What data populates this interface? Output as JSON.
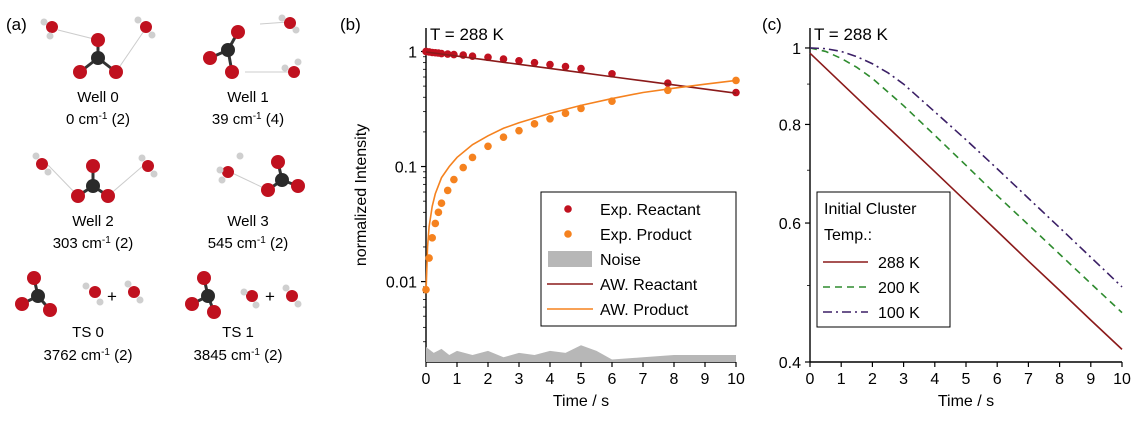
{
  "panel_a": {
    "label": "(a)",
    "structures": [
      {
        "name": "Well 0",
        "energy": "0 cm",
        "sup": "-1",
        "tail": " (2)"
      },
      {
        "name": "Well 1",
        "energy": "39 cm",
        "sup": "-1",
        "tail": " (4)"
      },
      {
        "name": "Well 2",
        "energy": "303 cm",
        "sup": "-1",
        "tail": " (2)"
      },
      {
        "name": "Well 3",
        "energy": "545 cm",
        "sup": "-1",
        "tail": " (2)"
      },
      {
        "name": "TS 0",
        "energy": "3762 cm",
        "sup": "-1",
        "tail": " (2)"
      },
      {
        "name": "TS 1",
        "energy": "3845 cm",
        "sup": "-1",
        "tail": " (2)"
      }
    ],
    "plus": "+"
  },
  "chart_data": [
    {
      "panel": "(b)",
      "type": "scatter",
      "annotation": "T = 288 K",
      "xlabel": "Time / s",
      "ylabel": "normalized Intensity",
      "xlim": [
        0,
        10
      ],
      "ylim": [
        0.002,
        1.6
      ],
      "yscale": "log",
      "xticks": [
        0,
        1,
        2,
        3,
        4,
        5,
        6,
        7,
        8,
        9,
        10
      ],
      "yticks": [
        0.01,
        0.1,
        1
      ],
      "ytick_labels": [
        "0.01",
        "0.1",
        "1"
      ],
      "legend_position": "bottom-right",
      "series": [
        {
          "name": "Exp. Reactant",
          "kind": "points",
          "color": "#c0111f",
          "x": [
            0,
            0.1,
            0.2,
            0.3,
            0.4,
            0.5,
            0.7,
            0.9,
            1.2,
            1.5,
            2,
            2.5,
            3,
            3.5,
            4,
            4.5,
            5,
            6,
            7.8,
            10
          ],
          "y": [
            1.0,
            0.99,
            0.98,
            0.975,
            0.97,
            0.96,
            0.95,
            0.94,
            0.93,
            0.91,
            0.89,
            0.86,
            0.83,
            0.8,
            0.77,
            0.74,
            0.71,
            0.64,
            0.53,
            0.44
          ]
        },
        {
          "name": "Exp. Product",
          "kind": "points",
          "color": "#f5821f",
          "x": [
            0,
            0.1,
            0.2,
            0.3,
            0.4,
            0.5,
            0.7,
            0.9,
            1.2,
            1.5,
            2,
            2.5,
            3,
            3.5,
            4,
            4.5,
            5,
            6,
            7.8,
            10
          ],
          "y": [
            0.0085,
            0.016,
            0.024,
            0.032,
            0.04,
            0.048,
            0.062,
            0.077,
            0.098,
            0.12,
            0.15,
            0.18,
            0.205,
            0.235,
            0.26,
            0.29,
            0.32,
            0.37,
            0.46,
            0.56
          ]
        },
        {
          "name": "Noise",
          "kind": "band",
          "color": "#b7b7b7",
          "x": [
            0,
            0.25,
            0.5,
            0.75,
            1,
            1.5,
            2,
            2.5,
            3,
            3.5,
            4,
            4.5,
            5,
            5.5,
            6,
            7,
            8,
            9,
            10
          ],
          "y": [
            0.0027,
            0.0024,
            0.0026,
            0.0023,
            0.0025,
            0.0023,
            0.0025,
            0.0022,
            0.0024,
            0.0023,
            0.0025,
            0.0024,
            0.0028,
            0.0025,
            0.0021,
            0.0022,
            0.0023,
            0.0023,
            0.0023
          ]
        },
        {
          "name": "AW. Reactant",
          "kind": "line",
          "color": "#8b1a1a",
          "x": [
            0,
            1,
            2,
            3,
            4,
            5,
            6,
            7,
            8,
            9,
            10
          ],
          "y": [
            0.99,
            0.912,
            0.84,
            0.773,
            0.712,
            0.656,
            0.603,
            0.556,
            0.512,
            0.471,
            0.434
          ]
        },
        {
          "name": "AW. Product",
          "kind": "line",
          "color": "#f5821f",
          "x": [
            0,
            0.05,
            0.1,
            0.2,
            0.3,
            0.5,
            0.75,
            1,
            1.5,
            2,
            2.5,
            3,
            4,
            5,
            6,
            7,
            8,
            9,
            10
          ],
          "y": [
            0.008,
            0.02,
            0.03,
            0.045,
            0.058,
            0.08,
            0.1,
            0.12,
            0.155,
            0.185,
            0.215,
            0.24,
            0.29,
            0.34,
            0.39,
            0.44,
            0.48,
            0.52,
            0.56
          ]
        }
      ]
    },
    {
      "panel": "(c)",
      "type": "line",
      "annotation": "T = 288 K",
      "xlabel": "Time / s",
      "ylabel": "",
      "xlim": [
        0,
        10
      ],
      "ylim": [
        0.4,
        1.06
      ],
      "yscale": "log",
      "xticks": [
        0,
        1,
        2,
        3,
        4,
        5,
        6,
        7,
        8,
        9,
        10
      ],
      "yticks": [
        0.4,
        0.6,
        0.8,
        1.0
      ],
      "ytick_labels": [
        "0.4",
        "0.6",
        "0.8",
        "1"
      ],
      "legend_title": [
        "Initial Cluster",
        "Temp.:"
      ],
      "legend_position": "bottom-left",
      "series": [
        {
          "name": "288 K",
          "dash": "solid",
          "color": "#8b1a1a",
          "x": [
            0,
            1,
            2,
            3,
            4,
            5,
            6,
            7,
            8,
            9,
            10
          ],
          "y": [
            0.985,
            0.903,
            0.828,
            0.76,
            0.697,
            0.639,
            0.586,
            0.537,
            0.493,
            0.452,
            0.415
          ]
        },
        {
          "name": "200 K",
          "dash": "dashed",
          "color": "#2e8b2e",
          "x": [
            0,
            0.5,
            1,
            1.5,
            2,
            3,
            4,
            5,
            6,
            7,
            8,
            9,
            10
          ],
          "y": [
            1.0,
            0.99,
            0.97,
            0.945,
            0.915,
            0.845,
            0.775,
            0.71,
            0.65,
            0.597,
            0.548,
            0.503,
            0.462
          ]
        },
        {
          "name": "100 K",
          "dash": "dashdot",
          "color": "#3b1f66",
          "x": [
            0,
            0.5,
            1,
            1.5,
            2,
            2.5,
            3,
            4,
            5,
            6,
            7,
            8,
            9,
            10
          ],
          "y": [
            1.0,
            0.998,
            0.99,
            0.975,
            0.955,
            0.93,
            0.9,
            0.83,
            0.765,
            0.703,
            0.645,
            0.592,
            0.543,
            0.498
          ]
        }
      ]
    }
  ]
}
